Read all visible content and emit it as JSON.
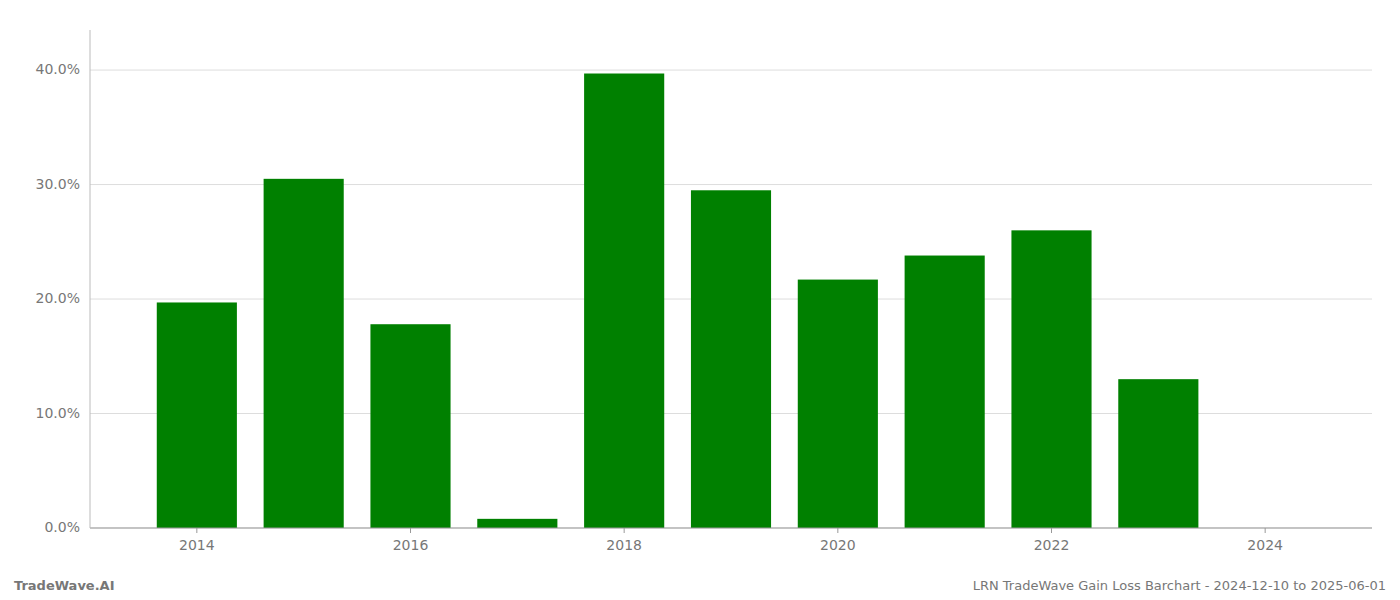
{
  "chart_data": {
    "type": "bar",
    "x": [
      2014,
      2015,
      2016,
      2017,
      2018,
      2019,
      2020,
      2021,
      2022,
      2023
    ],
    "values": [
      0.197,
      0.305,
      0.178,
      0.008,
      0.397,
      0.295,
      0.217,
      0.238,
      0.26,
      0.13
    ],
    "color": "#008000",
    "xlim": [
      2013.0,
      2025.0
    ],
    "xticks": [
      2014,
      2016,
      2018,
      2020,
      2022,
      2024
    ],
    "ylim": [
      0,
      0.435
    ],
    "yticks": [
      {
        "value": 0.0,
        "label": "0.0%"
      },
      {
        "value": 0.1,
        "label": "10.0%"
      },
      {
        "value": 0.2,
        "label": "20.0%"
      },
      {
        "value": 0.3,
        "label": "30.0%"
      },
      {
        "value": 0.4,
        "label": "40.0%"
      }
    ],
    "grid": true,
    "annotations": [
      "TradeWave.AI",
      "LRN TradeWave Gain Loss Barchart - 2024-12-10 to 2025-06-01"
    ]
  }
}
